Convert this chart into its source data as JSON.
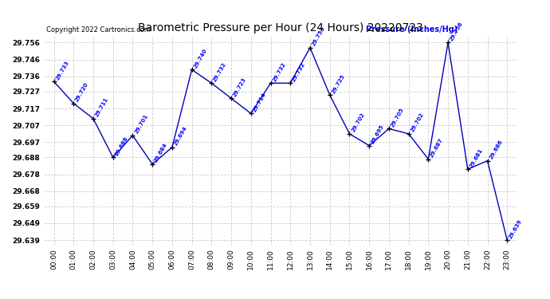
{
  "title": "Barometric Pressure per Hour (24 Hours) 20220723",
  "copyright": "Copyright 2022 Cartronics.com",
  "ylabel": "Pressure (Inches/Hg)",
  "hours": [
    "00:00",
    "01:00",
    "02:00",
    "03:00",
    "04:00",
    "05:00",
    "06:00",
    "07:00",
    "08:00",
    "09:00",
    "10:00",
    "11:00",
    "12:00",
    "13:00",
    "14:00",
    "15:00",
    "16:00",
    "17:00",
    "18:00",
    "19:00",
    "20:00",
    "21:00",
    "22:00",
    "23:00"
  ],
  "values": [
    29.733,
    29.72,
    29.711,
    29.688,
    29.701,
    29.684,
    29.694,
    29.74,
    29.732,
    29.723,
    29.714,
    29.732,
    29.732,
    29.753,
    29.725,
    29.702,
    29.695,
    29.705,
    29.702,
    29.687,
    29.756,
    29.681,
    29.686,
    29.639
  ],
  "ylim_min": 29.636,
  "ylim_max": 29.76,
  "line_color": "#0000bb",
  "marker_color": "#000000",
  "label_color": "#0000ff",
  "title_color": "#000000",
  "copyright_color": "#000000",
  "ylabel_color": "#0000ff",
  "bg_color": "#ffffff",
  "grid_color": "#cccccc",
  "ytick_values": [
    29.639,
    29.649,
    29.659,
    29.668,
    29.678,
    29.688,
    29.697,
    29.707,
    29.717,
    29.727,
    29.736,
    29.746,
    29.756
  ]
}
